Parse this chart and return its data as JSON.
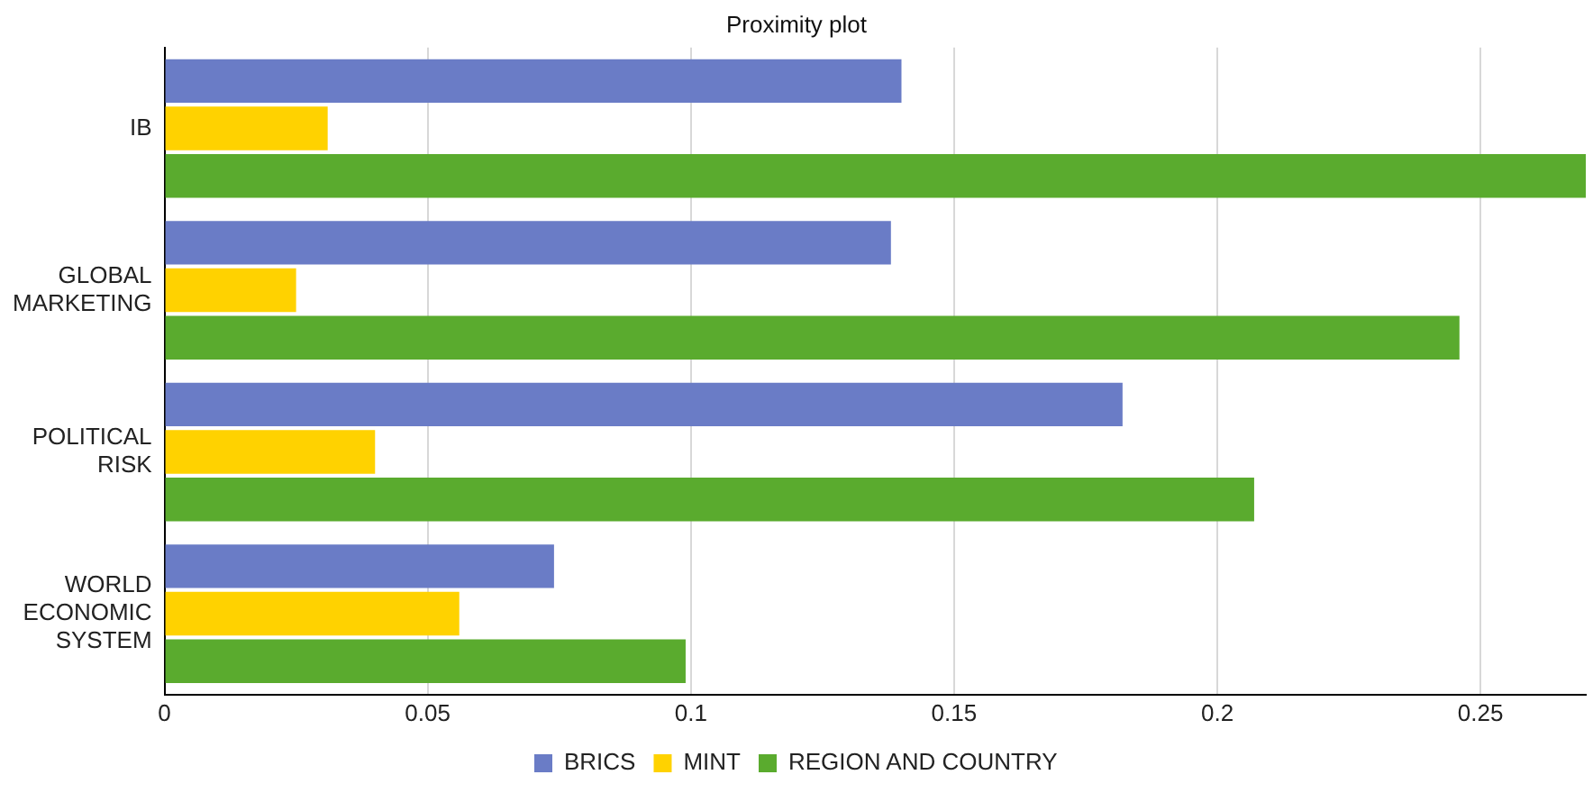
{
  "chart_data": {
    "type": "bar",
    "orientation": "horizontal",
    "title": "Proximity plot",
    "categories": [
      "IB",
      "GLOBAL MARKETING",
      "POLITICAL RISK",
      "WORLD ECONOMIC SYSTEM"
    ],
    "series": [
      {
        "name": "BRICS",
        "color": "#6a7cc6",
        "values": [
          0.14,
          0.138,
          0.182,
          0.074
        ]
      },
      {
        "name": "MINT",
        "color": "#ffd200",
        "values": [
          0.031,
          0.025,
          0.04,
          0.056
        ]
      },
      {
        "name": "REGION AND COUNTRY",
        "color": "#5aab2e",
        "values": [
          0.27,
          0.246,
          0.207,
          0.099
        ]
      }
    ],
    "xlim": [
      0,
      0.27
    ],
    "xticks": [
      0,
      0.05,
      0.1,
      0.15,
      0.2,
      0.25
    ],
    "grid": "x",
    "legend": "bottom"
  }
}
